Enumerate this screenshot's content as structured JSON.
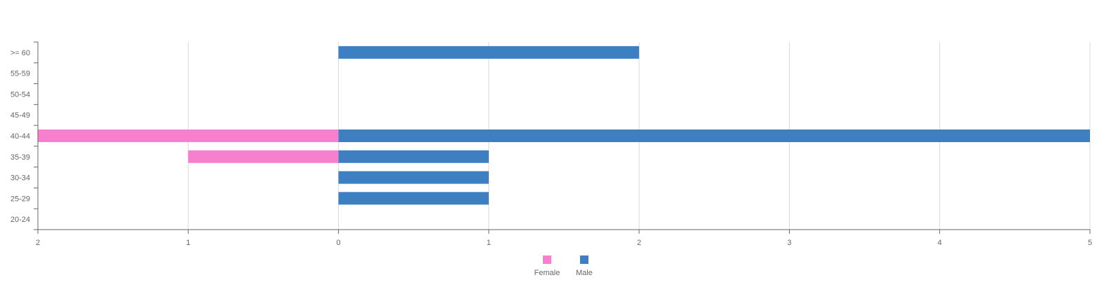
{
  "chart_data": {
    "type": "bar",
    "orientation": "horizontal",
    "layout": "population-pyramid",
    "categories": [
      "20-24",
      "25-29",
      "30-34",
      "35-39",
      "40-44",
      "45-49",
      "50-54",
      "55-59",
      ">= 60"
    ],
    "series": [
      {
        "name": "Female",
        "color": "#f780ce",
        "side": "left",
        "values": [
          0,
          0,
          0,
          1,
          2,
          0,
          0,
          0,
          0
        ]
      },
      {
        "name": "Male",
        "color": "#3e7fc1",
        "side": "right",
        "values": [
          0,
          1,
          1,
          1,
          5,
          0,
          0,
          0,
          2
        ]
      }
    ],
    "xlim": [
      -2,
      5
    ],
    "x_ticks": [
      -2,
      -1,
      0,
      1,
      2,
      3,
      4,
      5
    ],
    "x_tick_labels": [
      "2",
      "1",
      "0",
      "1",
      "2",
      "3",
      "4",
      "5"
    ],
    "grid": true,
    "legend": "bottom-center",
    "gridline_color": "#d9d9d9",
    "axis_color": "#666666"
  }
}
